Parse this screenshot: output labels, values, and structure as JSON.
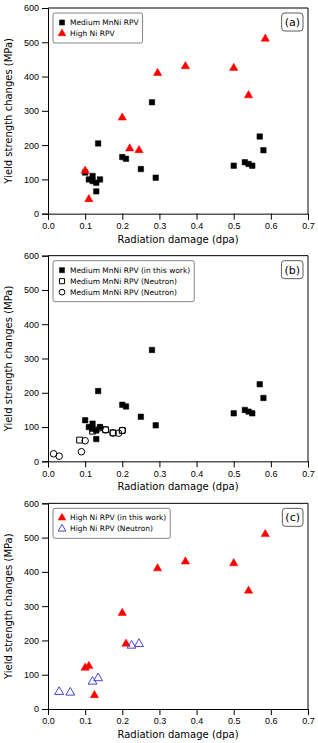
{
  "chart_data": [
    {
      "type": "scatter",
      "xlabel": "Radiation damage (dpa)",
      "ylabel": "Yield strength changes (MPa)",
      "xlim": [
        0.0,
        0.7
      ],
      "ylim": [
        0,
        600
      ],
      "xticks": [
        {
          "value": 0.0,
          "label": "0.0"
        },
        0.1,
        0.2,
        0.3,
        0.4,
        0.5,
        0.6,
        0.7
      ],
      "yticks": [
        0,
        100,
        200,
        300,
        400,
        500,
        600
      ],
      "annotation": "(a)",
      "legend": "upper left",
      "grid": false,
      "series": [
        {
          "name": "Medium MnNi RPV",
          "color": "black",
          "marker": "square",
          "x": [
            0.1,
            0.11,
            0.12,
            0.12,
            0.13,
            0.13,
            0.135,
            0.14,
            0.2,
            0.21,
            0.25,
            0.28,
            0.29,
            0.5,
            0.53,
            0.54,
            0.55,
            0.57,
            0.58
          ],
          "values": [
            120,
            100,
            110,
            95,
            90,
            65,
            205,
            100,
            165,
            160,
            130,
            325,
            105,
            140,
            150,
            145,
            140,
            225,
            185
          ]
        },
        {
          "name": "High Ni RPV",
          "color": "red",
          "marker": "triangle",
          "x": [
            0.1,
            0.11,
            0.2,
            0.22,
            0.245,
            0.295,
            0.37,
            0.5,
            0.54,
            0.585
          ],
          "values": [
            125,
            42,
            280,
            190,
            185,
            410,
            430,
            425,
            345,
            510
          ]
        }
      ]
    },
    {
      "type": "scatter",
      "xlabel": "Radiation damage (dpa)",
      "ylabel": "Yield strength changes (MPa)",
      "xlim": [
        0.0,
        0.7
      ],
      "ylim": [
        0,
        600
      ],
      "xticks": [
        {
          "value": 0.0,
          "label": "0.0"
        },
        0.1,
        0.2,
        0.3,
        0.4,
        0.5,
        0.6,
        0.7
      ],
      "yticks": [
        0,
        100,
        200,
        300,
        400,
        500,
        600
      ],
      "annotation": "(b)",
      "legend": "upper left",
      "grid": false,
      "series": [
        {
          "name": "Medium MnNi RPV (in this work)",
          "color": "black",
          "marker": "square",
          "x": [
            0.1,
            0.11,
            0.12,
            0.12,
            0.13,
            0.13,
            0.135,
            0.14,
            0.2,
            0.21,
            0.25,
            0.28,
            0.29,
            0.5,
            0.53,
            0.54,
            0.55,
            0.57,
            0.58
          ],
          "values": [
            120,
            100,
            110,
            95,
            90,
            65,
            205,
            100,
            165,
            160,
            130,
            325,
            105,
            140,
            150,
            145,
            140,
            225,
            185
          ]
        },
        {
          "name": "Medium MnNi RPV (Neutron)",
          "color": "black",
          "marker": "square-open",
          "x": [
            0.085,
            0.12,
            0.155,
            0.175,
            0.2
          ],
          "values": [
            62,
            88,
            92,
            83,
            90
          ]
        },
        {
          "name": "Medium MnNi RPV (Neutron)",
          "color": "black",
          "marker": "circle-open",
          "x": [
            0.015,
            0.03,
            0.09,
            0.1,
            0.14,
            0.155,
            0.175,
            0.19,
            0.2
          ],
          "values": [
            22,
            15,
            28,
            60,
            98,
            92,
            83,
            82,
            90
          ]
        }
      ]
    },
    {
      "type": "scatter",
      "xlabel": "Radiation damage (dpa)",
      "ylabel": "Yield strength changes (MPa)",
      "xlim": [
        0.0,
        0.7
      ],
      "ylim": [
        0,
        600
      ],
      "xticks": [
        {
          "value": 0.0,
          "label": "0.0"
        },
        0.1,
        0.2,
        0.3,
        0.4,
        0.5,
        0.6,
        0.7
      ],
      "yticks": [
        0,
        100,
        200,
        300,
        400,
        500,
        600
      ],
      "annotation": "(c)",
      "legend": "upper left",
      "grid": false,
      "series": [
        {
          "name": "High Ni RPV (in this work)",
          "color": "red",
          "marker": "triangle",
          "x": [
            0.1,
            0.11,
            0.125,
            0.2,
            0.21,
            0.295,
            0.37,
            0.5,
            0.54,
            0.585
          ],
          "values": [
            120,
            125,
            40,
            280,
            190,
            410,
            430,
            425,
            345,
            510
          ]
        },
        {
          "name": "High Ni RPV (Neutron)",
          "color": "#4444cc",
          "marker": "triangle-open",
          "x": [
            0.03,
            0.06,
            0.12,
            0.135,
            0.225,
            0.245
          ],
          "values": [
            50,
            48,
            80,
            90,
            185,
            190
          ]
        }
      ]
    }
  ]
}
